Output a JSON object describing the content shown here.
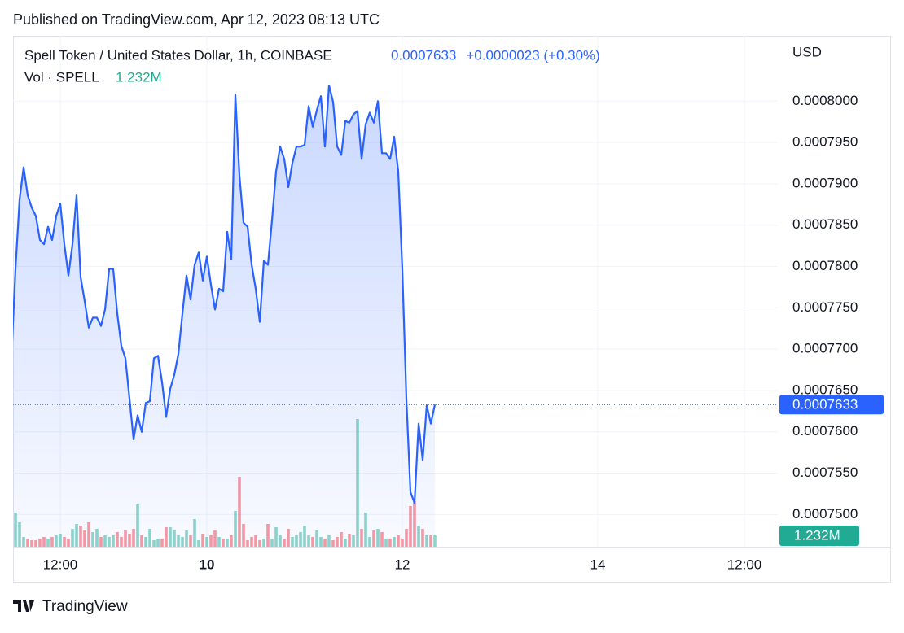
{
  "header": {
    "published": "Published on TradingView.com, Apr 12, 2023 08:13 UTC",
    "footer": "TradingView"
  },
  "chart_data": {
    "type": "line",
    "title": "Spell Token / United States Dollar, 1h, COINBASE",
    "change": "+0.0000023 (+0.30%)",
    "currency": "USD",
    "series": [
      {
        "name": "Price",
        "color": "#2962ff",
        "values": [
          0.0007689,
          0.0007797,
          0.0007881,
          0.000792,
          0.0007886,
          0.0007871,
          0.0007861,
          0.0007832,
          0.0007827,
          0.0007848,
          0.0007832,
          0.0007861,
          0.0007876,
          0.0007827,
          0.0007789,
          0.0007827,
          0.0007886,
          0.0007787,
          0.0007758,
          0.0007726,
          0.0007738,
          0.0007738,
          0.0007728,
          0.0007748,
          0.0007797,
          0.0007797,
          0.0007743,
          0.0007704,
          0.0007689,
          0.000764,
          0.0007591,
          0.000762,
          0.00076,
          0.0007635,
          0.0007637,
          0.0007689,
          0.0007692,
          0.000766,
          0.0007618,
          0.0007652,
          0.0007669,
          0.0007694,
          0.0007743,
          0.0007789,
          0.000776,
          0.0007802,
          0.0007817,
          0.0007783,
          0.0007812,
          0.0007778,
          0.0007748,
          0.0007773,
          0.000777,
          0.0007842,
          0.0007809,
          0.0008008,
          0.000791,
          0.0007853,
          0.0007848,
          0.0007802,
          0.0007773,
          0.0007733,
          0.0007807,
          0.0007802,
          0.0007856,
          0.0007915,
          0.0007945,
          0.000793,
          0.0007896,
          0.0007925,
          0.0007945,
          0.0007945,
          0.0007947,
          0.0007994,
          0.0007969,
          0.0007989,
          0.0008006,
          0.0007945,
          0.0008019,
          0.0007999,
          0.0007945,
          0.0007935,
          0.0007976,
          0.0007974,
          0.0007984,
          0.0007988,
          0.000793,
          0.0007972,
          0.0007986,
          0.0007974,
          0.0008,
          0.0007937,
          0.0007937,
          0.000793,
          0.0007957,
          0.0007915,
          0.0007797,
          0.000764,
          0.0007527,
          0.0007514,
          0.000761,
          0.0007566,
          0.0007632,
          0.000761,
          0.0007633
        ]
      },
      {
        "name": "Vol · SPELL",
        "up_color": "#22ab94",
        "down_color": "#f23645",
        "last_value_label": "1.232M",
        "values": [
          1230000,
          3444000,
          2460000,
          984000,
          820000,
          656000,
          656000,
          820000,
          984000,
          820000,
          984000,
          1148000,
          1312000,
          984000,
          820000,
          1804000,
          2296000,
          2132000,
          1640000,
          2460000,
          1476000,
          1804000,
          984000,
          1148000,
          984000,
          1148000,
          1476000,
          984000,
          1640000,
          1312000,
          1804000,
          4264000,
          1148000,
          984000,
          1804000,
          656000,
          820000,
          820000,
          1968000,
          1968000,
          1640000,
          1148000,
          984000,
          1640000,
          1148000,
          2788000,
          656000,
          1312000,
          984000,
          1148000,
          1640000,
          984000,
          820000,
          820000,
          1148000,
          3608000,
          7052000,
          2296000,
          656000,
          984000,
          1148000,
          656000,
          820000,
          2296000,
          820000,
          1968000,
          1148000,
          820000,
          1804000,
          984000,
          1148000,
          1476000,
          2132000,
          1148000,
          984000,
          1640000,
          984000,
          820000,
          1148000,
          656000,
          984000,
          1476000,
          820000,
          1312000,
          1148000,
          12874000,
          1804000,
          3444000,
          984000,
          1640000,
          1804000,
          1476000,
          820000,
          820000,
          984000,
          1148000,
          820000,
          1804000,
          4100000,
          4592000,
          2132000,
          1804000,
          1148000,
          1148000,
          1232000
        ]
      }
    ],
    "xlim": [
      0.4,
      188.2
    ],
    "xticks": [
      {
        "value": 12,
        "label": "12:00"
      },
      {
        "value": 48,
        "label": "10",
        "emphasis": true
      },
      {
        "value": 96,
        "label": "12"
      },
      {
        "value": 144,
        "label": "14"
      },
      {
        "value": 180,
        "label": "12:00"
      }
    ],
    "ylim": [
      0.0007461,
      0.0008079
    ],
    "yticks": [
      {
        "value": 0.00075,
        "label": "0.0007500"
      },
      {
        "value": 0.000755,
        "label": "0.0007550"
      },
      {
        "value": 0.00076,
        "label": "0.0007600"
      },
      {
        "value": 0.000765,
        "label": "0.0007650"
      },
      {
        "value": 0.00077,
        "label": "0.0007700"
      },
      {
        "value": 0.000775,
        "label": "0.0007750"
      },
      {
        "value": 0.00078,
        "label": "0.0007800"
      },
      {
        "value": 0.000785,
        "label": "0.0007850"
      },
      {
        "value": 0.00079,
        "label": "0.0007900"
      },
      {
        "value": 0.000795,
        "label": "0.0007950"
      },
      {
        "value": 0.0008,
        "label": "0.0008000"
      }
    ],
    "grid": true
  }
}
